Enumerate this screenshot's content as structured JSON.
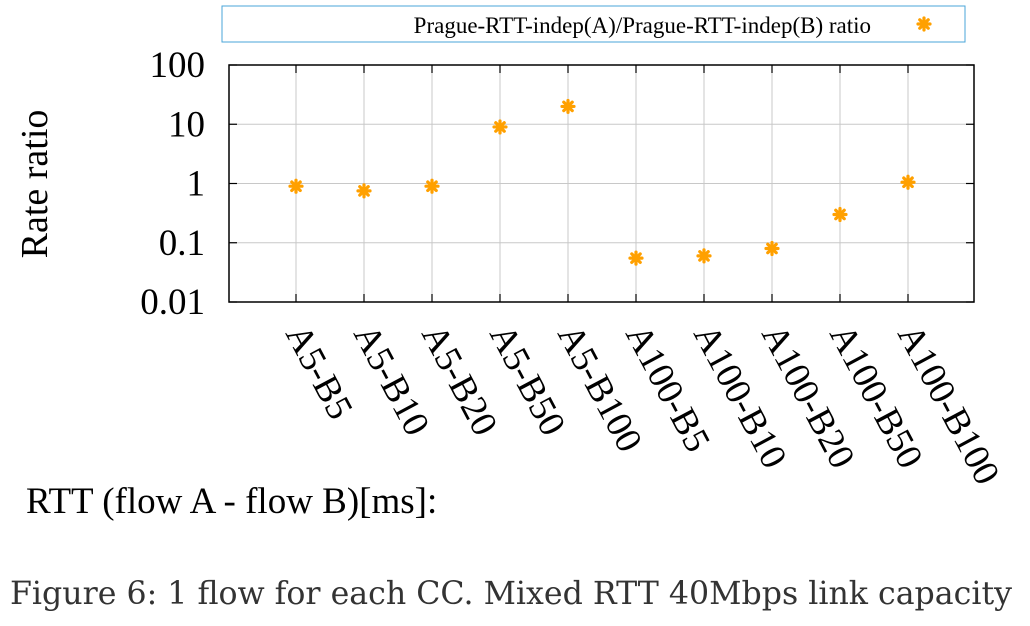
{
  "chart_data": {
    "type": "scatter",
    "ylabel": "Rate ratio",
    "xlabel": "RTT (flow A - flow B)[ms]:",
    "y_scale": "log",
    "ylim": [
      0.01,
      100
    ],
    "y_ticks": [
      "100",
      "10",
      "1",
      "0.1",
      "0.01"
    ],
    "y_tick_values": [
      100,
      10,
      1,
      0.1,
      0.01
    ],
    "categories": [
      "A5-B5",
      "A5-B10",
      "A5-B20",
      "A5-B50",
      "A5-B100",
      "A100-B5",
      "A100-B10",
      "A100-B20",
      "A100-B50",
      "A100-B100"
    ],
    "series": [
      {
        "name": "Prague-RTT-indep(A)/Prague-RTT-indep(B) ratio",
        "color": "#ffa000",
        "marker": "asterisk",
        "values": [
          0.9,
          0.75,
          0.9,
          9,
          20,
          0.055,
          0.06,
          0.08,
          0.3,
          1.05
        ]
      }
    ],
    "grid": true,
    "legend_position": "top"
  },
  "caption": "Figure 6: 1 flow for each CC. Mixed RTT 40Mbps link capacity"
}
